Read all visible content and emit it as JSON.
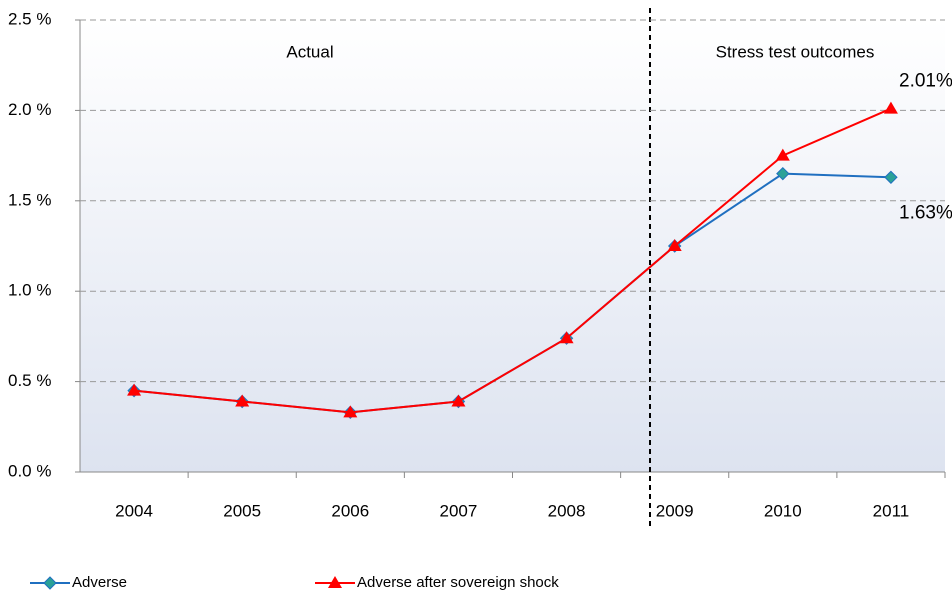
{
  "chart_data": {
    "type": "line",
    "categories": [
      "2004",
      "2005",
      "2006",
      "2007",
      "2008",
      "2009",
      "2010",
      "2011"
    ],
    "series": [
      {
        "name": "Adverse",
        "color": "#1f6fc0",
        "marker": "diamond",
        "marker_color": "#2aa198",
        "values": [
          0.45,
          0.39,
          0.33,
          0.39,
          0.74,
          1.25,
          1.65,
          1.63
        ],
        "value_labels": [
          null,
          null,
          null,
          null,
          null,
          null,
          null,
          "1.63%"
        ]
      },
      {
        "name": "Adverse after sovereign shock",
        "color": "#ff0000",
        "marker": "triangle",
        "marker_color": "#ff0000",
        "values": [
          0.45,
          0.39,
          0.33,
          0.39,
          0.74,
          1.25,
          1.75,
          2.01
        ],
        "value_labels": [
          null,
          null,
          null,
          null,
          null,
          null,
          null,
          "2.01%"
        ]
      }
    ],
    "ylim": [
      0,
      2.5
    ],
    "yticks": [
      {
        "value": 0,
        "label": "0.0 %"
      },
      {
        "value": 0.5,
        "label": "0.5 %"
      },
      {
        "value": 1,
        "label": "1.0 %"
      },
      {
        "value": 1.5,
        "label": "1.5 %"
      },
      {
        "value": 2,
        "label": "2.0 %"
      },
      {
        "value": 2.5,
        "label": "2.5 %"
      }
    ],
    "grid": true,
    "legend": "bottom",
    "annotations": [
      "Actual",
      "Stress test outcomes"
    ]
  }
}
